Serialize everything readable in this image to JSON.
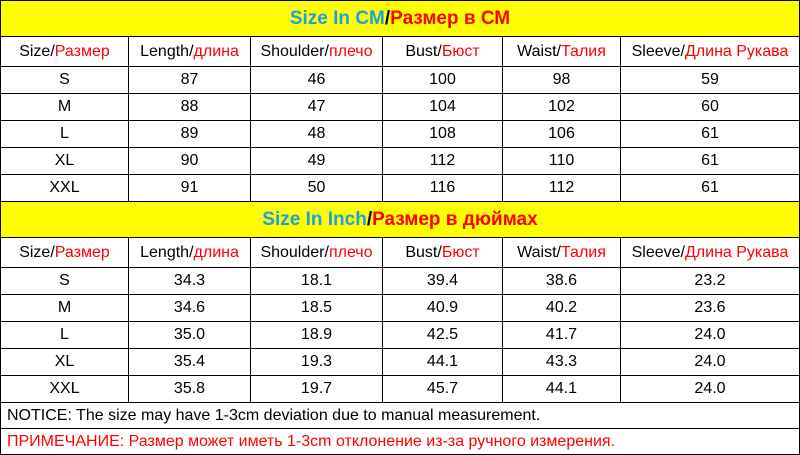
{
  "tables": [
    {
      "title": {
        "en": "Size In CM",
        "sep": "/",
        "ru": "Размер в СМ"
      },
      "header": [
        {
          "en": "Size/",
          "ru": "Размер"
        },
        {
          "en": "Length/",
          "ru": "длина"
        },
        {
          "en": "Shoulder/",
          "ru": "плечо"
        },
        {
          "en": "Bust/",
          "ru": "Бюст"
        },
        {
          "en": "Waist/",
          "ru": "Талия"
        },
        {
          "en": "Sleeve/",
          "ru": "Длина Рукава"
        }
      ],
      "rows": [
        [
          "S",
          "87",
          "46",
          "100",
          "98",
          "59"
        ],
        [
          "M",
          "88",
          "47",
          "104",
          "102",
          "60"
        ],
        [
          "L",
          "89",
          "48",
          "108",
          "106",
          "61"
        ],
        [
          "XL",
          "90",
          "49",
          "112",
          "110",
          "61"
        ],
        [
          "XXL",
          "91",
          "50",
          "116",
          "112",
          "61"
        ]
      ]
    },
    {
      "title": {
        "en": "Size In Inch",
        "sep": "/",
        "ru": "Размер в дюймах"
      },
      "header": [
        {
          "en": "Size/",
          "ru": "Размер"
        },
        {
          "en": "Length/",
          "ru": "длина"
        },
        {
          "en": "Shoulder/",
          "ru": "плечо"
        },
        {
          "en": "Bust/",
          "ru": "Бюст"
        },
        {
          "en": "Waist/",
          "ru": "Талия"
        },
        {
          "en": "Sleeve/",
          "ru": "Длина Рукава"
        }
      ],
      "rows": [
        [
          "S",
          "34.3",
          "18.1",
          "39.4",
          "38.6",
          "23.2"
        ],
        [
          "M",
          "34.6",
          "18.5",
          "40.9",
          "40.2",
          "23.6"
        ],
        [
          "L",
          "35.0",
          "18.9",
          "42.5",
          "41.7",
          "24.0"
        ],
        [
          "XL",
          "35.4",
          "19.3",
          "44.1",
          "43.3",
          "24.0"
        ],
        [
          "XXL",
          "35.8",
          "19.7",
          "45.7",
          "44.1",
          "24.0"
        ]
      ]
    }
  ],
  "notice": {
    "en": "NOTICE:  The size may have 1-3cm deviation due to manual measurement.",
    "ru": "ПРИМЕЧАНИЕ: Размер может иметь 1-3cm отклонение из-за ручного измерения."
  }
}
